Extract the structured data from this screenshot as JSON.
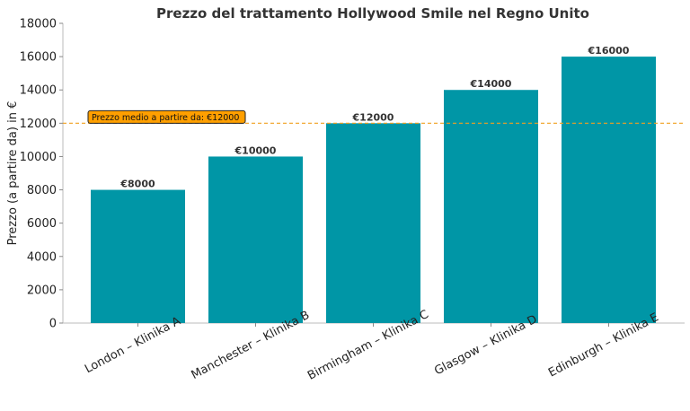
{
  "chart_data": {
    "type": "bar",
    "title": "Prezzo del trattamento Hollywood Smile nel Regno Unito",
    "xlabel": "",
    "ylabel": "Prezzo (a partire da) in €",
    "categories": [
      "London – Klinika A",
      "Manchester – Klinika B",
      "Birmingham – Klinika C",
      "Glasgow – Klinika D",
      "Edinburgh – Klinika E"
    ],
    "values": [
      8000,
      10000,
      12000,
      14000,
      16000
    ],
    "value_labels": [
      "€8000",
      "€10000",
      "€12000",
      "€14000",
      "€16000"
    ],
    "ylim": [
      0,
      18000
    ],
    "yticks": [
      0,
      2000,
      4000,
      6000,
      8000,
      10000,
      12000,
      14000,
      16000,
      18000
    ],
    "average_line": {
      "value": 12000,
      "label": "Prezzo medio a partire da: €12000"
    },
    "grid": false,
    "legend": "none",
    "colors": {
      "bar": "#0096a6",
      "average_line": "#f0a020",
      "average_label_bg": "#ff9f00",
      "axis": "#bbbbbb"
    }
  }
}
